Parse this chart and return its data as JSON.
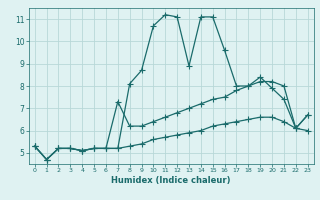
{
  "xlabel": "Humidex (Indice chaleur)",
  "x_values": [
    0,
    1,
    2,
    3,
    4,
    5,
    6,
    7,
    8,
    9,
    10,
    11,
    12,
    13,
    14,
    15,
    16,
    17,
    18,
    19,
    20,
    21,
    22,
    23
  ],
  "line1": [
    5.3,
    4.7,
    5.2,
    5.2,
    5.1,
    5.2,
    5.2,
    5.2,
    8.1,
    8.7,
    10.7,
    11.2,
    11.1,
    8.9,
    11.1,
    11.1,
    9.6,
    8.0,
    8.0,
    8.4,
    7.9,
    7.4,
    6.1,
    6.7
  ],
  "line2": [
    5.3,
    4.7,
    5.2,
    5.2,
    5.1,
    5.2,
    5.2,
    7.3,
    6.2,
    6.2,
    6.4,
    6.6,
    6.8,
    7.0,
    7.2,
    7.4,
    7.5,
    7.8,
    8.0,
    8.2,
    8.2,
    8.0,
    6.1,
    6.7
  ],
  "line3": [
    5.3,
    4.7,
    5.2,
    5.2,
    5.1,
    5.2,
    5.2,
    5.2,
    5.3,
    5.4,
    5.6,
    5.7,
    5.8,
    5.9,
    6.0,
    6.2,
    6.3,
    6.4,
    6.5,
    6.6,
    6.6,
    6.4,
    6.1,
    6.0
  ],
  "line_color": "#1a6b6b",
  "bg_color": "#dff2f2",
  "grid_color": "#b8d8d8",
  "ylim": [
    4.5,
    11.5
  ],
  "yticks": [
    5,
    6,
    7,
    8,
    9,
    10,
    11
  ],
  "xticks": [
    0,
    1,
    2,
    3,
    4,
    5,
    6,
    7,
    8,
    9,
    10,
    11,
    12,
    13,
    14,
    15,
    16,
    17,
    18,
    19,
    20,
    21,
    22,
    23
  ],
  "marker": "+",
  "markersize": 4,
  "linewidth": 0.9
}
